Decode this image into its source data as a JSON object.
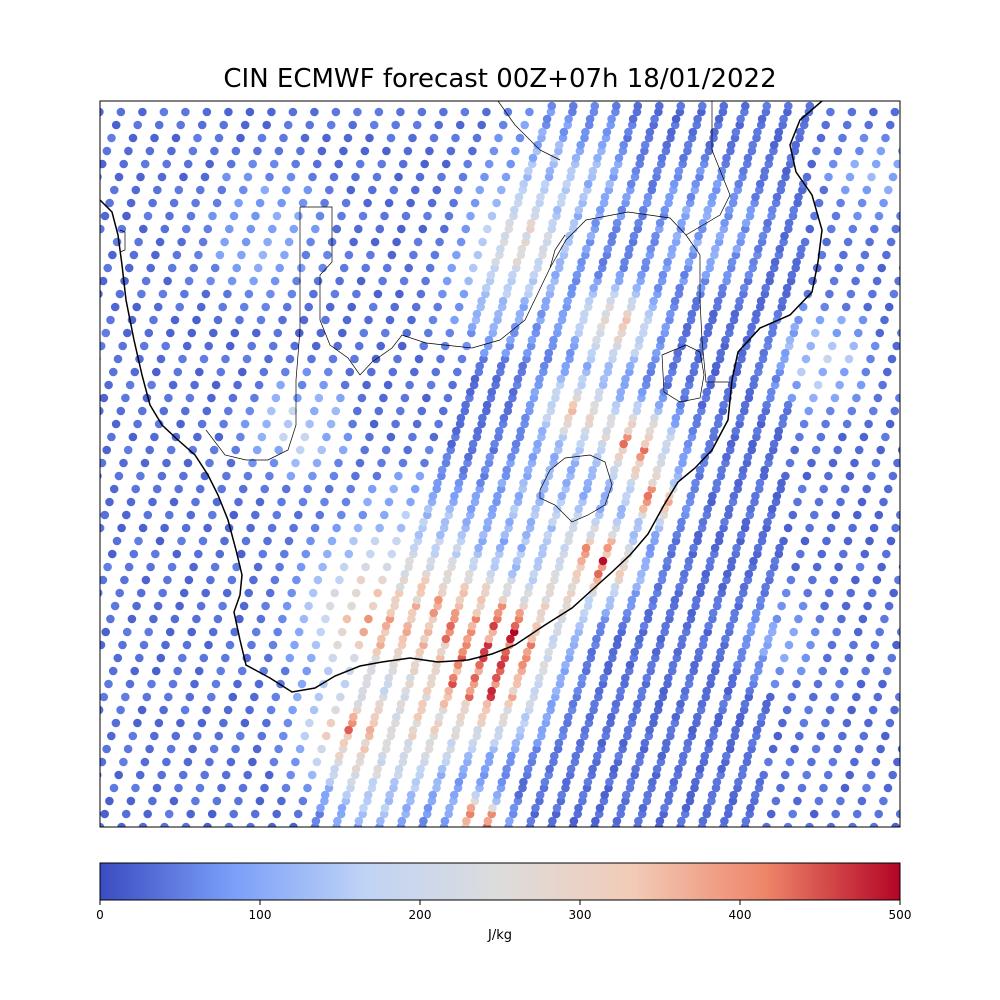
{
  "title": "CIN ECMWF forecast 00Z+07h 18/01/2022",
  "colorbar": {
    "label": "J/kg",
    "min": 0,
    "max": 500,
    "ticks": [
      "0",
      "100",
      "200",
      "300",
      "400",
      "500"
    ],
    "colormap": "coolwarm",
    "colors": [
      "#3b4cc0",
      "#7b9ff9",
      "#c0d4f5",
      "#dddcdc",
      "#f2cbb7",
      "#ee8468",
      "#b40426"
    ]
  },
  "map": {
    "features": [
      "coastline",
      "country-borders"
    ],
    "grid": false,
    "marker": "circle",
    "points_shown": "satellite-swath sample points colored by CIN"
  }
}
